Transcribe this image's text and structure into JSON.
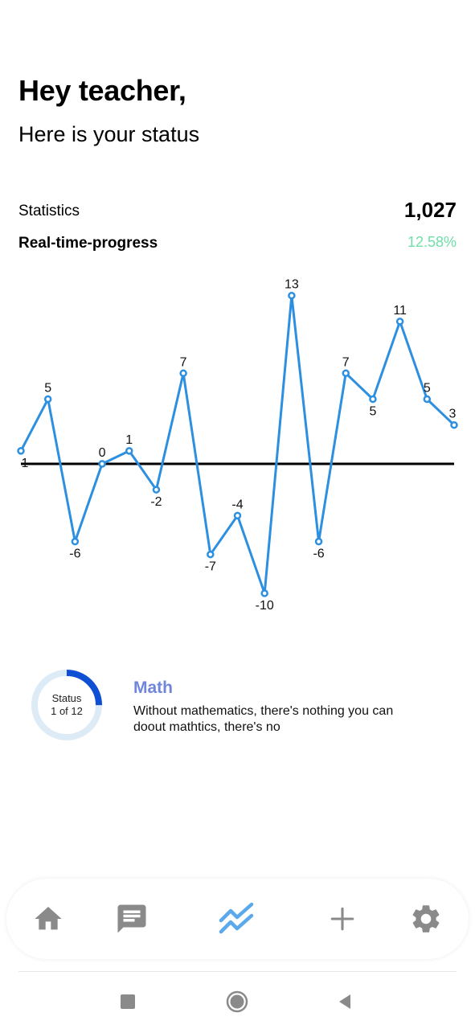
{
  "header": {
    "greeting": "Hey teacher,",
    "subtitle": "Here is your status"
  },
  "stats": {
    "label": "Statistics",
    "value": "1,027"
  },
  "progress": {
    "label": "Real-time-progress",
    "value": "12.58%",
    "color": "#6ee0a6"
  },
  "chart_data": {
    "type": "line",
    "x": [
      1,
      2,
      3,
      4,
      5,
      6,
      7,
      8,
      9,
      10,
      11,
      12,
      13,
      14,
      15,
      16,
      17
    ],
    "values": [
      1,
      5,
      -6,
      0,
      1,
      -2,
      7,
      -7,
      -4,
      -10,
      13,
      -6,
      7,
      5,
      11,
      5,
      3
    ],
    "series_color": "#2d8fe0",
    "baseline": 0,
    "ylim": [
      -10,
      13
    ]
  },
  "course": {
    "status_label": "Status",
    "status_count": "1 of 12",
    "progress_fraction": 0.25,
    "title": "Math",
    "description": "Without mathematics, there's nothing you can doout mathtics, there's no"
  },
  "nav": {
    "items": [
      {
        "icon": "home-icon",
        "active": false
      },
      {
        "icon": "chat-icon",
        "active": false
      },
      {
        "icon": "chart-icon",
        "active": true
      },
      {
        "icon": "add-icon",
        "active": false
      },
      {
        "icon": "settings-icon",
        "active": false
      }
    ],
    "active_color": "#5aa9ec",
    "inactive_color": "#8a8a8a"
  },
  "system_nav": {
    "buttons": [
      "recents-icon",
      "home-circle-icon",
      "back-icon"
    ]
  }
}
